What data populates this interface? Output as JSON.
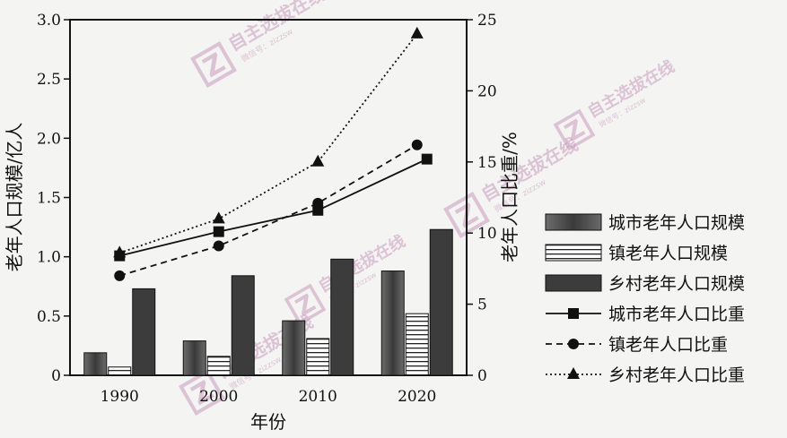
{
  "chart_data": {
    "type": "bar",
    "categories": [
      "1990",
      "2000",
      "2010",
      "2020"
    ],
    "xlabel": "年份",
    "ylabel_left": "老年人口规模/亿人",
    "ylabel_right": "老年人口比重/%",
    "ylim_left": [
      0,
      3.0
    ],
    "ylim_right": [
      0,
      25
    ],
    "yticks_left": [
      "0",
      "0.5",
      "1.0",
      "1.5",
      "2.0",
      "2.5",
      "3.0"
    ],
    "yticks_right": [
      "0",
      "5",
      "10",
      "15",
      "20",
      "25"
    ],
    "bar_series": [
      {
        "name": "城市老年人口规模",
        "values": [
          0.19,
          0.29,
          0.46,
          0.88
        ],
        "pattern": "gradient"
      },
      {
        "name": "镇老年人口规模",
        "values": [
          0.07,
          0.16,
          0.31,
          0.52
        ],
        "pattern": "hlines"
      },
      {
        "name": "乡村老年人口规模",
        "values": [
          0.73,
          0.84,
          0.98,
          1.23
        ],
        "pattern": "dark"
      }
    ],
    "line_series": [
      {
        "name": "城市老年人口比重",
        "values": [
          8.4,
          10.1,
          11.6,
          15.2
        ],
        "marker": "square",
        "dash": "solid"
      },
      {
        "name": "镇老年人口比重",
        "values": [
          7.0,
          9.1,
          12.1,
          16.2
        ],
        "marker": "circle",
        "dash": "dashed"
      },
      {
        "name": "乡村老年人口比重",
        "values": [
          8.6,
          11.0,
          15.0,
          24.0
        ],
        "marker": "triangle",
        "dash": "dotted"
      }
    ],
    "legend_position": "right"
  },
  "watermark": {
    "logo_letter": "Z",
    "brand": "自主选拔在线",
    "sub": "微信号：zizzsw"
  }
}
